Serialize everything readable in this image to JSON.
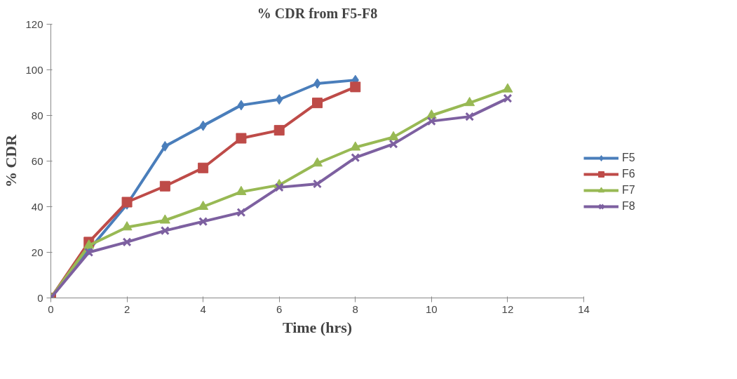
{
  "chart_data": {
    "type": "line",
    "title": "% CDR from F5-F8",
    "xlabel": "Time (hrs)",
    "ylabel": "% CDR",
    "x": [
      0,
      1,
      2,
      3,
      4,
      5,
      6,
      7,
      8,
      9,
      10,
      11,
      12
    ],
    "xlim": [
      0,
      14
    ],
    "xticks": [
      0,
      2,
      4,
      6,
      8,
      10,
      12,
      14
    ],
    "ylim": [
      0,
      120
    ],
    "yticks": [
      0,
      20,
      40,
      60,
      80,
      100,
      120
    ],
    "grid": false,
    "legend": "right",
    "series": [
      {
        "name": "F5",
        "color": "#4a7ebb",
        "marker": "diamond",
        "values": [
          0,
          21,
          41,
          66.5,
          75.5,
          84.5,
          87,
          94,
          95.5,
          null,
          null,
          null,
          null
        ]
      },
      {
        "name": "F6",
        "color": "#be4b48",
        "marker": "square",
        "values": [
          0,
          24.5,
          42,
          49,
          57,
          70,
          73.5,
          85.5,
          92.5,
          null,
          null,
          null,
          null
        ]
      },
      {
        "name": "F7",
        "color": "#98b954",
        "marker": "triangle",
        "values": [
          0,
          23,
          31,
          34,
          40,
          46.5,
          49.5,
          59,
          66,
          70.5,
          80,
          85.5,
          91.5
        ]
      },
      {
        "name": "F8",
        "color": "#7d60a0",
        "marker": "cross",
        "values": [
          0,
          20,
          24.5,
          29.5,
          33.5,
          37.5,
          48.5,
          50,
          61.5,
          67.5,
          77.5,
          79.5,
          87.5
        ]
      }
    ]
  }
}
